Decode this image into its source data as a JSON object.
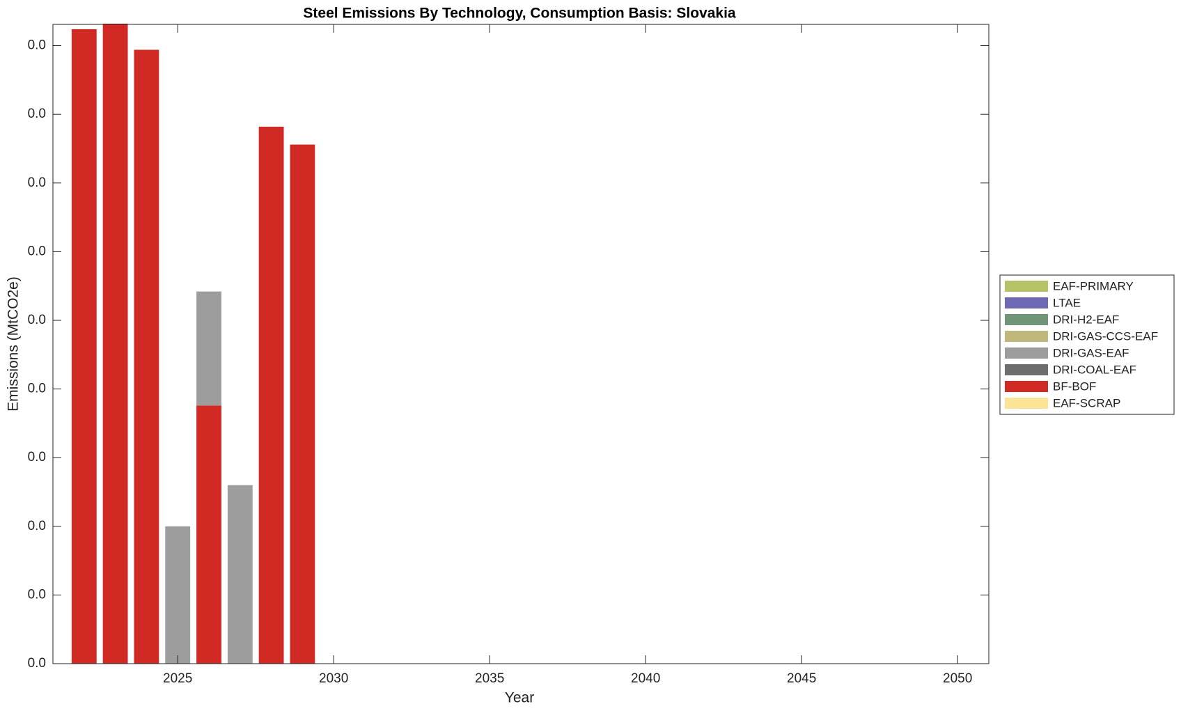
{
  "chart_data": {
    "type": "bar",
    "stacked": true,
    "title": "Steel Emissions By Technology, Consumption Basis: Slovakia",
    "x_label": "Year",
    "y_label": "Emissions (MtCO2e)",
    "x": [
      2022,
      2023,
      2024,
      2025,
      2026,
      2027,
      2028,
      2029
    ],
    "series": [
      {
        "name": "EAF-PRIMARY",
        "color": "#b5c266",
        "values": [
          0,
          0,
          0,
          0,
          0,
          0,
          0,
          0
        ]
      },
      {
        "name": "LTAE",
        "color": "#6e68b5",
        "values": [
          0,
          0,
          0,
          0,
          0,
          0,
          0,
          0
        ]
      },
      {
        "name": "DRI-H2-EAF",
        "color": "#709478",
        "values": [
          0,
          0,
          0,
          0,
          0,
          0,
          0,
          0
        ]
      },
      {
        "name": "DRI-GAS-CCS-EAF",
        "color": "#bfb87a",
        "values": [
          0,
          0,
          0,
          0,
          0,
          0,
          0,
          0
        ]
      },
      {
        "name": "DRI-GAS-EAF",
        "color": "#9d9d9d",
        "values": [
          0,
          0,
          0,
          0.01,
          0.0083,
          0.013,
          0,
          0
        ]
      },
      {
        "name": "DRI-COAL-EAF",
        "color": "#6d6d6d",
        "values": [
          0,
          0,
          0,
          0,
          0,
          0,
          0,
          0
        ]
      },
      {
        "name": "BF-BOF",
        "color": "#d12a25",
        "values": [
          0.0462,
          0.0466,
          0.0447,
          0,
          0.0188,
          0,
          0.0391,
          0.0378
        ]
      },
      {
        "name": "EAF-SCRAP",
        "color": "#fce496",
        "values": [
          0,
          0,
          0,
          0,
          0,
          0,
          0,
          0
        ]
      }
    ],
    "xlim": [
      2021,
      2051
    ],
    "xticks": [
      2025,
      2030,
      2035,
      2040,
      2045,
      2050
    ],
    "ylim": [
      0,
      0.04655
    ],
    "yticks": [
      {
        "value": 0,
        "label": "0.0"
      },
      {
        "value": 0.005,
        "label": "0.0"
      },
      {
        "value": 0.01,
        "label": "0.0"
      },
      {
        "value": 0.015,
        "label": "0.0"
      },
      {
        "value": 0.02,
        "label": "0.0"
      },
      {
        "value": 0.025,
        "label": "0.0"
      },
      {
        "value": 0.03,
        "label": "0.0"
      },
      {
        "value": 0.035,
        "label": "0.0"
      },
      {
        "value": 0.04,
        "label": "0.0"
      },
      {
        "value": 0.045,
        "label": "0.0"
      }
    ],
    "legend": "right"
  }
}
